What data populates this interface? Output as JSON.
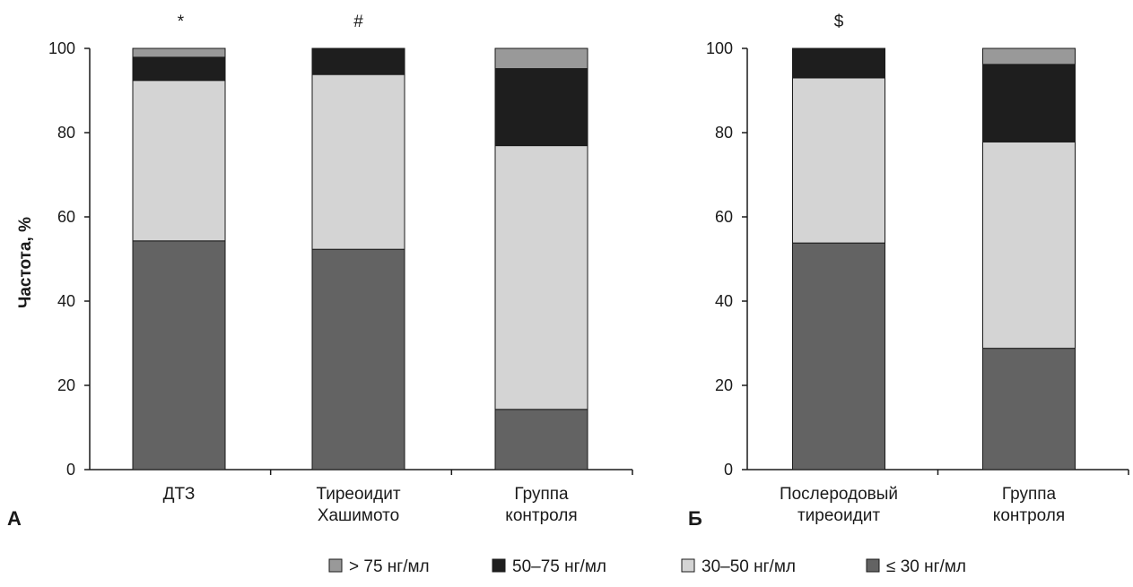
{
  "colors": {
    "gt75": "#999999",
    "50to75": "#1e1e1e",
    "30to50": "#d4d4d4",
    "le30": "#636363",
    "axis": "#1a1a1a"
  },
  "legend": [
    {
      "key": "gt75",
      "label": "> 75 нг/мл"
    },
    {
      "key": "50to75",
      "label": "50–75 нг/мл"
    },
    {
      "key": "30to50",
      "label": "30–50 нг/мл"
    },
    {
      "key": "le30",
      "label": "≤ 30 нг/мл"
    }
  ],
  "chart_data": [
    {
      "type": "bar",
      "stacked": true,
      "panel_label": "А",
      "ylabel": "Частота, %",
      "ylim": [
        0,
        100
      ],
      "yticks": [
        "0",
        "20",
        "40",
        "60",
        "80",
        "100"
      ],
      "categories": [
        [
          "ДТЗ"
        ],
        [
          "Тиреоидит",
          "Хашимото"
        ],
        [
          "Группа",
          "контроля"
        ]
      ],
      "annotations": [
        "*",
        "#",
        ""
      ],
      "series": [
        {
          "name": "≤ 30 нг/мл",
          "key": "le30",
          "values": [
            54.3,
            52.3,
            14.3
          ]
        },
        {
          "name": "30–50 нг/мл",
          "key": "30to50",
          "values": [
            38.1,
            41.5,
            62.6
          ]
        },
        {
          "name": "50–75 нг/мл",
          "key": "50to75",
          "values": [
            5.5,
            6.2,
            18.3
          ]
        },
        {
          "name": "> 75 нг/мл",
          "key": "gt75",
          "values": [
            2.1,
            0,
            4.8
          ]
        }
      ]
    },
    {
      "type": "bar",
      "stacked": true,
      "panel_label": "Б",
      "ylabel": "",
      "ylim": [
        0,
        100
      ],
      "yticks": [
        "0",
        "20",
        "40",
        "60",
        "80",
        "100"
      ],
      "categories": [
        [
          "Послеродовый",
          "тиреоидит"
        ],
        [
          "Группа",
          "контроля"
        ]
      ],
      "annotations": [
        "$",
        ""
      ],
      "series": [
        {
          "name": "≤ 30 нг/мл",
          "key": "le30",
          "values": [
            53.8,
            28.8
          ]
        },
        {
          "name": "30–50 нг/мл",
          "key": "30to50",
          "values": [
            39.2,
            49.0
          ]
        },
        {
          "name": "50–75 нг/мл",
          "key": "50to75",
          "values": [
            7.0,
            18.4
          ]
        },
        {
          "name": "> 75 нг/мл",
          "key": "gt75",
          "values": [
            0,
            3.8
          ]
        }
      ]
    }
  ]
}
